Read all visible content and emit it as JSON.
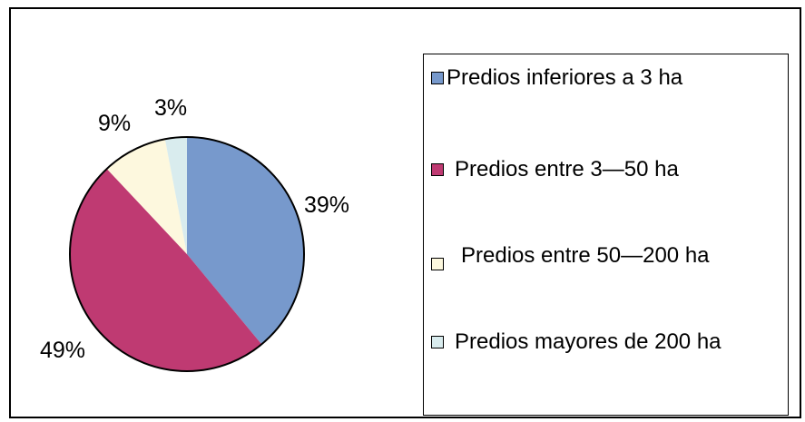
{
  "chart_data": {
    "type": "pie",
    "slices": [
      {
        "label": "Predios inferiores a 3 ha",
        "value": 39,
        "value_label": "39%",
        "color": "#7799cc"
      },
      {
        "label": "Predios entre 3—50 ha",
        "value": 49,
        "value_label": "49%",
        "color": "#bf3a72"
      },
      {
        "label": "Predios entre 50—200 ha",
        "value": 9,
        "value_label": "9%",
        "color": "#fdf8de"
      },
      {
        "label": "Predios mayores de 200 ha",
        "value": 3,
        "value_label": "3%",
        "color": "#d9ecee"
      }
    ],
    "legend_position": "right"
  }
}
